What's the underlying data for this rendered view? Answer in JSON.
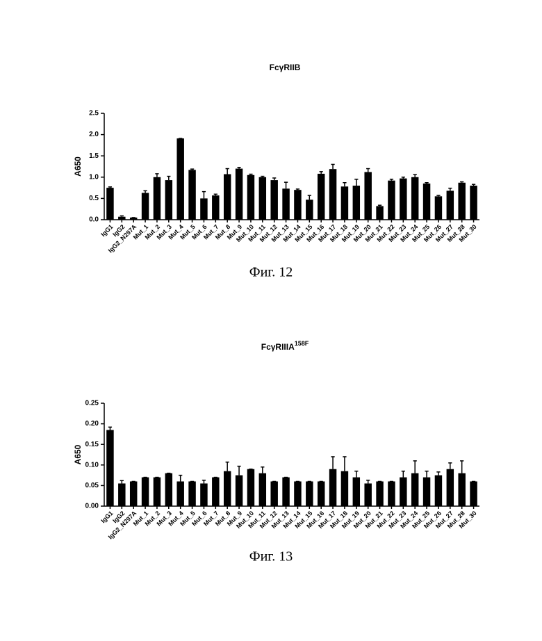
{
  "chart_data": [
    {
      "type": "bar",
      "title": "FcγRIIB",
      "y_label": "A650",
      "caption": "Фиг. 12",
      "color": "#000000",
      "categories": [
        "IgG1",
        "IgG2",
        "IgG2_N297A",
        "Mut_1",
        "Mut_2",
        "Mut_3",
        "Mut_4",
        "Mut_5",
        "Mut_6",
        "Mut_7",
        "Mut_8",
        "Mut_9",
        "Mut_10",
        "Mut_11",
        "Mut_12",
        "Mut_13",
        "Mut_14",
        "Mut_15",
        "Mut_16",
        "Mut_17",
        "Mut_18",
        "Mut_19",
        "Mut_20",
        "Mut_21",
        "Mut_22",
        "Mut_23",
        "Mut_24",
        "Mut_25",
        "Mut_26",
        "Mut_27",
        "Mut_28",
        "Mut_30"
      ],
      "values": [
        0.75,
        0.07,
        0.05,
        0.63,
        1.0,
        0.93,
        1.91,
        1.17,
        0.5,
        0.57,
        1.07,
        1.2,
        1.05,
        1.0,
        0.93,
        0.73,
        0.7,
        0.47,
        1.08,
        1.19,
        0.78,
        0.8,
        1.12,
        0.32,
        0.92,
        0.97,
        1.0,
        0.85,
        0.55,
        0.68,
        0.87,
        0.8
      ],
      "errors": [
        0.02,
        0.02,
        0,
        0.05,
        0.08,
        0.09,
        0,
        0.02,
        0.16,
        0.03,
        0.13,
        0.03,
        0.02,
        0.02,
        0.05,
        0.15,
        0.02,
        0.1,
        0.05,
        0.11,
        0.09,
        0.15,
        0.08,
        0.02,
        0.03,
        0.03,
        0.06,
        0.02,
        0.02,
        0.06,
        0.02,
        0.03
      ],
      "ylim": [
        0,
        2.5
      ],
      "yticks": [
        {
          "value": 0,
          "label": "0.0"
        },
        0.5,
        {
          "value": 1,
          "label": "1.0"
        },
        1.5,
        {
          "value": 2,
          "label": "2.0"
        },
        2.5
      ]
    },
    {
      "type": "bar",
      "title": "FcγRIIIA",
      "title_superscript": "158F",
      "y_label": "A650",
      "caption": "Фиг. 13",
      "color": "#000000",
      "categories": [
        "IgG1",
        "IgG2",
        "IgG2_N297A",
        "Mut_1",
        "Mut_2",
        "Mut_3",
        "Mut_4",
        "Mut_5",
        "Mut_6",
        "Mut_7",
        "Mut_8",
        "Mut_9",
        "Mut_10",
        "Mut_11",
        "Mut_12",
        "Mut_13",
        "Mut_14",
        "Mut_15",
        "Mut_16",
        "Mut_17",
        "Mut_18",
        "Mut_19",
        "Mut_20",
        "Mut_21",
        "Mut_22",
        "Mut_23",
        "Mut_24",
        "Mut_25",
        "Mut_26",
        "Mut_27",
        "Mut_28",
        "Mut_30"
      ],
      "values": [
        0.185,
        0.055,
        0.06,
        0.07,
        0.07,
        0.08,
        0.06,
        0.06,
        0.055,
        0.07,
        0.085,
        0.075,
        0.09,
        0.08,
        0.06,
        0.07,
        0.06,
        0.06,
        0.06,
        0.09,
        0.085,
        0.07,
        0.055,
        0.06,
        0.06,
        0.07,
        0.08,
        0.07,
        0.075,
        0.09,
        0.08,
        0.06
      ],
      "errors": [
        0.007,
        0.007,
        0,
        0,
        0,
        0,
        0.015,
        0,
        0.008,
        0,
        0.022,
        0.022,
        0,
        0.015,
        0,
        0,
        0,
        0,
        0,
        0.03,
        0.035,
        0.015,
        0.008,
        0,
        0,
        0.015,
        0.03,
        0.015,
        0.008,
        0.015,
        0.03,
        0
      ],
      "ylim": [
        0,
        0.25
      ],
      "yticks": [
        {
          "value": 0,
          "label": "0.00"
        },
        0.05,
        {
          "value": 0.1,
          "label": "0.10"
        },
        0.15,
        {
          "value": 0.2,
          "label": "0.20"
        },
        0.25
      ]
    }
  ]
}
